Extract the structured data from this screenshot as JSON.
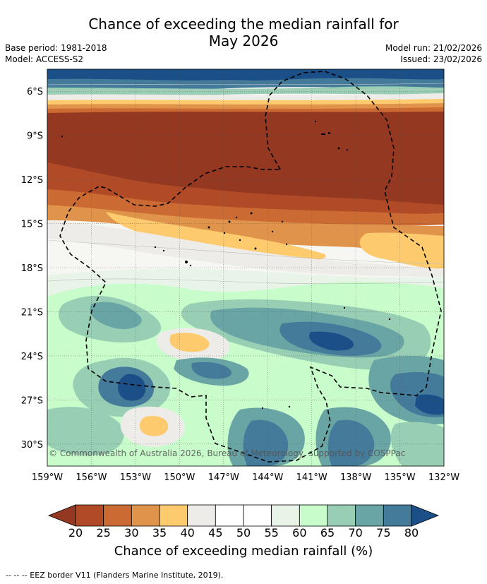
{
  "title": {
    "line1": "Chance of exceeding the median rainfall for",
    "line2": "May 2026"
  },
  "meta": {
    "base_period": "Base period: 1981-2018",
    "model": "Model: ACCESS-S2",
    "model_run": "Model run: 21/02/2026",
    "issued": "Issued: 23/02/2026"
  },
  "map": {
    "copyright": "© Commonwealth of Australia 2026, Bureau of Meteorology, supported by COSPPac",
    "lat_labels": [
      "6°S",
      "9°S",
      "12°S",
      "15°S",
      "18°S",
      "21°S",
      "24°S",
      "27°S",
      "30°S"
    ],
    "lon_labels": [
      "159°W",
      "156°W",
      "153°W",
      "150°W",
      "147°W",
      "144°W",
      "141°W",
      "138°W",
      "135°W",
      "132°W"
    ]
  },
  "colorbar": {
    "ticks": [
      "20",
      "25",
      "30",
      "35",
      "40",
      "45",
      "50",
      "55",
      "60",
      "65",
      "70",
      "75",
      "80"
    ],
    "title": "Chance of exceeding median rainfall (%)",
    "colors": [
      "#953822",
      "#b14a26",
      "#cc6a33",
      "#e0934a",
      "#fdcb6e",
      "#eeece8",
      "#ffffff",
      "#ffffff",
      "#e8f4e7",
      "#c8fccb",
      "#98cfb4",
      "#6aa5a5",
      "#447b9b",
      "#1b4f87"
    ]
  },
  "legend": {
    "eez_note": "--  --  -- EEZ border V11 (Flanders Marine Institute, 2019)."
  }
}
